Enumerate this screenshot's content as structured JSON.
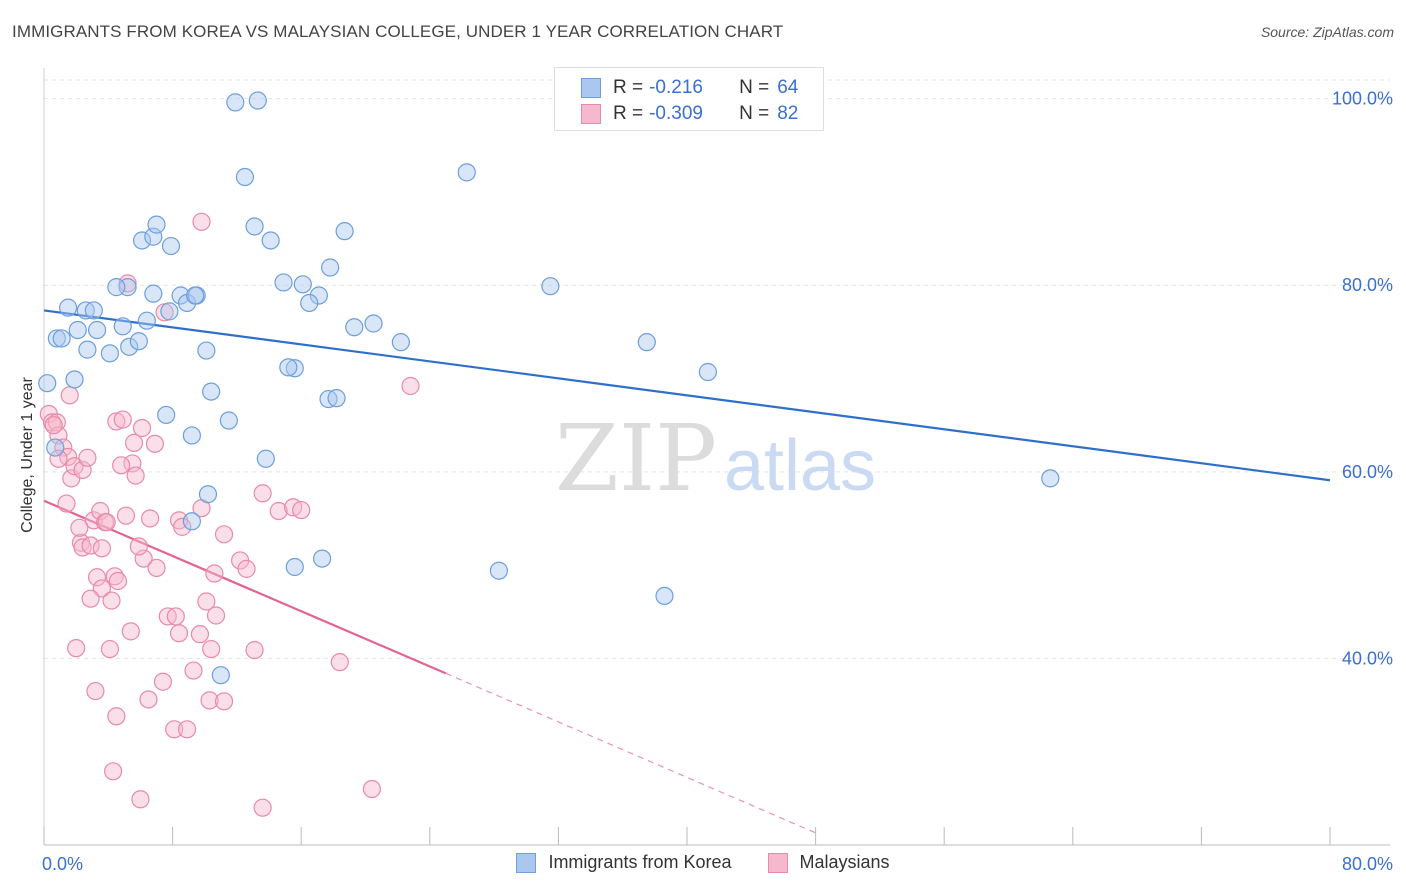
{
  "title": "IMMIGRANTS FROM KOREA VS MALAYSIAN COLLEGE, UNDER 1 YEAR CORRELATION CHART",
  "source": "Source: ZipAtlas.com",
  "watermark": {
    "zip": "ZIP",
    "atlas": "atlas"
  },
  "legend": {
    "rows": [
      {
        "r_label": "R =",
        "r_value": "-0.216",
        "n_label": "N =",
        "n_value": "64"
      },
      {
        "r_label": "R =",
        "r_value": "-0.309",
        "n_label": "N =",
        "n_value": "82"
      }
    ]
  },
  "colors": {
    "korea_fill": "#a9c7ef",
    "korea_stroke": "#6d9fdd",
    "korea_line": "#2f6fcc",
    "malay_fill": "#f6b8cc",
    "malay_stroke": "#e88aa8",
    "malay_line": "#e2648f",
    "axis_text": "#3b6fd0",
    "grid": "#e3e3e3"
  },
  "chart_data": {
    "type": "scatter",
    "title": "IMMIGRANTS FROM KOREA VS MALAYSIAN COLLEGE, UNDER 1 YEAR CORRELATION CHART",
    "xlabel": "",
    "ylabel": "College, Under 1 year",
    "xlim": [
      0,
      80
    ],
    "ylim": [
      20,
      102
    ],
    "x_tick_labels": [
      "0.0%",
      "80.0%"
    ],
    "y_ticks": [
      40,
      60,
      80,
      100
    ],
    "y_tick_labels": [
      "40.0%",
      "60.0%",
      "80.0%",
      "100.0%"
    ],
    "grid": true,
    "legend_position": "top-center",
    "series": [
      {
        "name": "Immigrants from Korea",
        "R": -0.216,
        "N": 64,
        "trend": {
          "x": [
            0,
            80
          ],
          "y": [
            77.3,
            59.1
          ]
        },
        "points": [
          [
            0.2,
            69.5
          ],
          [
            0.8,
            74.3
          ],
          [
            1.1,
            74.3
          ],
          [
            1.9,
            69.9
          ],
          [
            1.5,
            77.6
          ],
          [
            2.6,
            77.3
          ],
          [
            2.1,
            75.2
          ],
          [
            3.3,
            75.2
          ],
          [
            2.7,
            73.1
          ],
          [
            3.1,
            77.3
          ],
          [
            4.1,
            72.7
          ],
          [
            4.9,
            75.6
          ],
          [
            5.3,
            73.4
          ],
          [
            5.9,
            74.0
          ],
          [
            5.2,
            79.8
          ],
          [
            4.5,
            79.8
          ],
          [
            6.4,
            76.2
          ],
          [
            6.8,
            79.1
          ],
          [
            6.1,
            84.8
          ],
          [
            6.8,
            85.2
          ],
          [
            7.0,
            86.5
          ],
          [
            7.9,
            84.2
          ],
          [
            7.8,
            77.2
          ],
          [
            8.5,
            78.9
          ],
          [
            8.9,
            78.1
          ],
          [
            9.5,
            78.9
          ],
          [
            9.4,
            78.9
          ],
          [
            10.1,
            73.0
          ],
          [
            11.9,
            99.6
          ],
          [
            13.3,
            99.8
          ],
          [
            12.5,
            91.6
          ],
          [
            13.1,
            86.3
          ],
          [
            14.1,
            84.8
          ],
          [
            13.8,
            61.4
          ],
          [
            14.9,
            80.3
          ],
          [
            15.6,
            71.1
          ],
          [
            15.2,
            71.2
          ],
          [
            16.1,
            80.1
          ],
          [
            17.1,
            78.9
          ],
          [
            16.5,
            78.1
          ],
          [
            17.8,
            81.9
          ],
          [
            17.7,
            67.8
          ],
          [
            18.2,
            67.9
          ],
          [
            18.7,
            85.8
          ],
          [
            19.3,
            75.5
          ],
          [
            20.5,
            75.9
          ],
          [
            22.2,
            73.9
          ],
          [
            7.6,
            66.1
          ],
          [
            9.2,
            63.9
          ],
          [
            10.4,
            68.6
          ],
          [
            11.5,
            65.5
          ],
          [
            10.2,
            57.6
          ],
          [
            9.2,
            54.7
          ],
          [
            15.6,
            49.8
          ],
          [
            17.3,
            50.7
          ],
          [
            26.3,
            92.1
          ],
          [
            28.3,
            49.4
          ],
          [
            31.5,
            79.9
          ],
          [
            37.5,
            73.9
          ],
          [
            38.6,
            46.7
          ],
          [
            41.3,
            70.7
          ],
          [
            62.6,
            59.3
          ],
          [
            11.0,
            38.2
          ],
          [
            0.7,
            62.6
          ]
        ]
      },
      {
        "name": "Malaysians",
        "R": -0.309,
        "N": 82,
        "trend": {
          "x": [
            0,
            25
          ],
          "y": [
            56.9,
            38.4
          ]
        },
        "trend_extension": {
          "x": [
            25,
            48
          ],
          "y": [
            38.4,
            21.3
          ]
        },
        "points": [
          [
            0.3,
            66.2
          ],
          [
            0.5,
            65.3
          ],
          [
            0.8,
            65.3
          ],
          [
            0.9,
            63.9
          ],
          [
            1.2,
            62.6
          ],
          [
            1.5,
            61.6
          ],
          [
            1.7,
            59.3
          ],
          [
            1.4,
            56.6
          ],
          [
            1.6,
            68.2
          ],
          [
            1.9,
            60.6
          ],
          [
            2.4,
            60.2
          ],
          [
            2.7,
            61.5
          ],
          [
            2.3,
            52.4
          ],
          [
            2.4,
            51.9
          ],
          [
            2.9,
            52.1
          ],
          [
            3.1,
            54.8
          ],
          [
            3.5,
            55.8
          ],
          [
            3.8,
            54.6
          ],
          [
            3.6,
            51.8
          ],
          [
            3.9,
            54.6
          ],
          [
            3.3,
            48.7
          ],
          [
            3.6,
            47.5
          ],
          [
            4.2,
            46.2
          ],
          [
            4.4,
            48.8
          ],
          [
            4.6,
            48.3
          ],
          [
            5.1,
            55.3
          ],
          [
            5.5,
            60.9
          ],
          [
            5.7,
            59.6
          ],
          [
            4.8,
            60.7
          ],
          [
            4.5,
            65.4
          ],
          [
            5.2,
            80.2
          ],
          [
            4.1,
            41.0
          ],
          [
            4.3,
            27.9
          ],
          [
            3.2,
            36.5
          ],
          [
            6.5,
            35.6
          ],
          [
            6.2,
            50.7
          ],
          [
            5.9,
            52.0
          ],
          [
            7.0,
            49.7
          ],
          [
            7.4,
            37.5
          ],
          [
            7.7,
            44.5
          ],
          [
            8.2,
            44.5
          ],
          [
            8.4,
            42.7
          ],
          [
            8.1,
            32.4
          ],
          [
            8.9,
            32.4
          ],
          [
            8.4,
            54.8
          ],
          [
            9.3,
            38.7
          ],
          [
            9.7,
            42.6
          ],
          [
            10.1,
            46.1
          ],
          [
            10.4,
            41.0
          ],
          [
            10.3,
            35.5
          ],
          [
            10.6,
            49.1
          ],
          [
            10.7,
            44.6
          ],
          [
            11.2,
            53.3
          ],
          [
            12.2,
            50.5
          ],
          [
            12.6,
            49.6
          ],
          [
            13.1,
            40.9
          ],
          [
            13.6,
            57.7
          ],
          [
            14.6,
            55.8
          ],
          [
            15.5,
            56.2
          ],
          [
            16.0,
            55.9
          ],
          [
            18.4,
            39.6
          ],
          [
            20.4,
            26.0
          ],
          [
            22.8,
            69.2
          ],
          [
            9.8,
            86.8
          ],
          [
            6.9,
            63.0
          ],
          [
            6.1,
            64.7
          ],
          [
            6.6,
            55.0
          ],
          [
            5.6,
            63.1
          ],
          [
            7.5,
            77.1
          ],
          [
            8.6,
            54.1
          ],
          [
            4.9,
            65.6
          ],
          [
            2.0,
            41.1
          ],
          [
            9.8,
            56.1
          ],
          [
            11.2,
            35.4
          ],
          [
            5.4,
            42.9
          ],
          [
            4.5,
            33.8
          ],
          [
            2.9,
            46.4
          ],
          [
            6.0,
            24.9
          ],
          [
            13.6,
            24.0
          ],
          [
            0.6,
            65.0
          ],
          [
            0.9,
            61.4
          ],
          [
            2.2,
            54.0
          ]
        ]
      }
    ]
  },
  "bottom_legend": {
    "items": [
      {
        "label": "Immigrants from Korea"
      },
      {
        "label": "Malaysians"
      }
    ]
  }
}
